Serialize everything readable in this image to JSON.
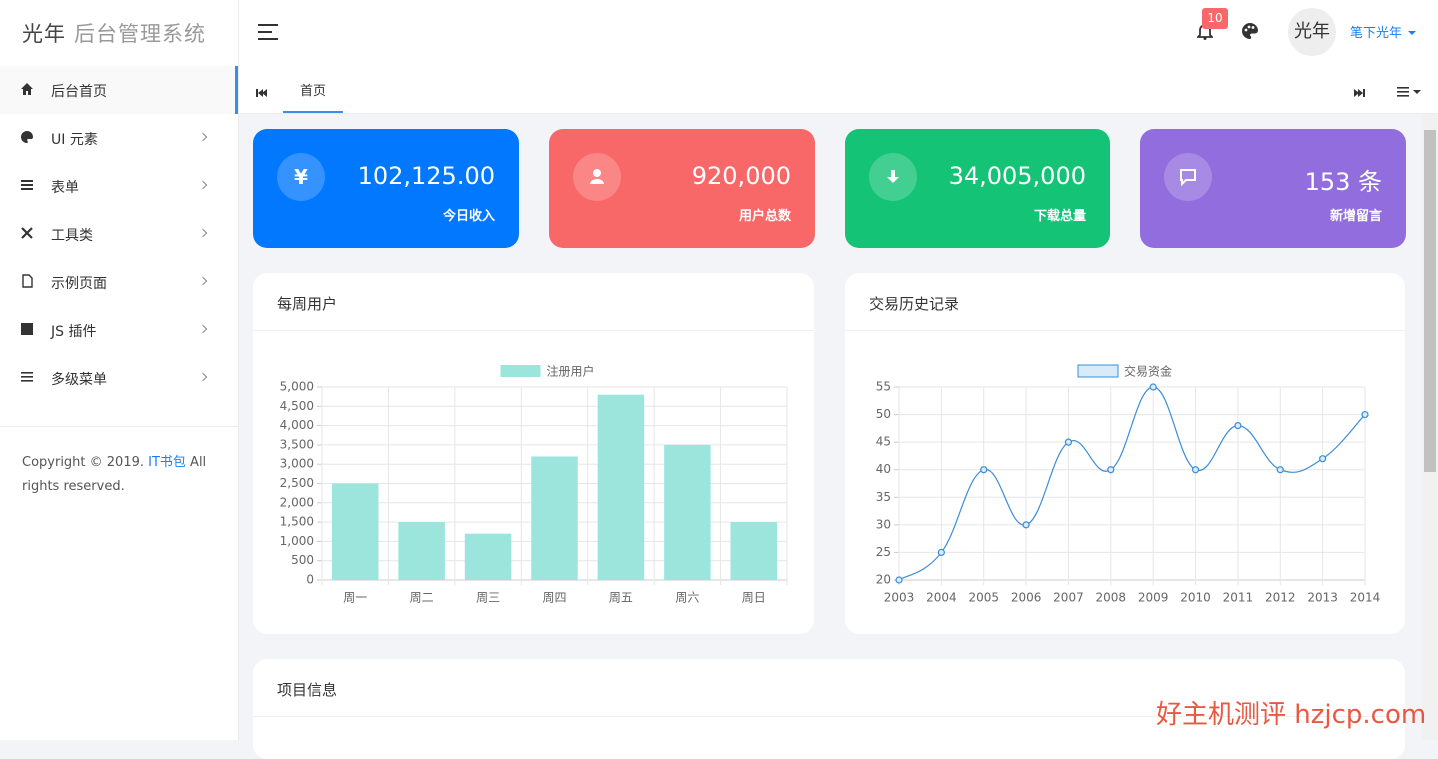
{
  "sidebar": {
    "logo_mark": "光年",
    "logo_text": "后台管理系统",
    "menu": [
      "后台首页",
      "UI 元素",
      "表单",
      "工具类",
      "示例页面",
      "JS 插件",
      "多级菜单"
    ],
    "copyright": {
      "before": "Copyright © 2019. ",
      "link": "IT书包",
      "after": " All rights reserved."
    }
  },
  "header": {
    "notification_count": "10",
    "avatar": "光年",
    "username": "笔下光年"
  },
  "tabs": [
    "首页"
  ],
  "stats": [
    {
      "icon": "¥",
      "value": "102,125.00",
      "label": "今日收入"
    },
    {
      "value": "920,000",
      "label": "用户总数"
    },
    {
      "value": "34,005,000",
      "label": "下载总量"
    },
    {
      "value": "153 条",
      "label": "新增留言"
    }
  ],
  "cards": [
    "每周用户",
    "交易历史记录",
    "项目信息"
  ],
  "watermark": "好主机测评 hzjcp.com",
  "chart_data": [
    {
      "type": "bar",
      "legend": "注册用户",
      "series": [
        {
          "name": "注册用户",
          "color": "#9ce5dd",
          "values": [
            2500,
            1500,
            1200,
            3200,
            4800,
            3500,
            1500
          ]
        }
      ],
      "categories": [
        "周一",
        "周二",
        "周三",
        "周四",
        "周五",
        "周六",
        "周日"
      ],
      "ylim": [
        0,
        5000
      ],
      "yticks": [
        0,
        500,
        {
          "value": 1000,
          "label": "1,000"
        },
        {
          "value": 1500,
          "label": "1,500"
        },
        {
          "value": 2000,
          "label": "2,000"
        },
        {
          "value": 2500,
          "label": "2,500"
        },
        {
          "value": 3000,
          "label": "3,000"
        },
        {
          "value": 3500,
          "label": "3,500"
        },
        {
          "value": 4000,
          "label": "4,000"
        },
        {
          "value": 4500,
          "label": "4,500"
        },
        {
          "value": 5000,
          "label": "5,000"
        }
      ],
      "grid": true
    },
    {
      "type": "line",
      "series": [
        {
          "name": "交易资金",
          "color": "#3a8dd8",
          "values": [
            20,
            25,
            40,
            30,
            45,
            40,
            55,
            40,
            48,
            40,
            42,
            50
          ]
        }
      ],
      "categories": [
        "2003",
        "2004",
        "2005",
        "2006",
        "2007",
        "2008",
        "2009",
        "2010",
        "2011",
        "2012",
        "2013",
        "2014"
      ],
      "ylim": [
        20,
        55
      ],
      "yticks": [
        20,
        25,
        30,
        35,
        40,
        45,
        50,
        55
      ],
      "grid": true
    }
  ]
}
